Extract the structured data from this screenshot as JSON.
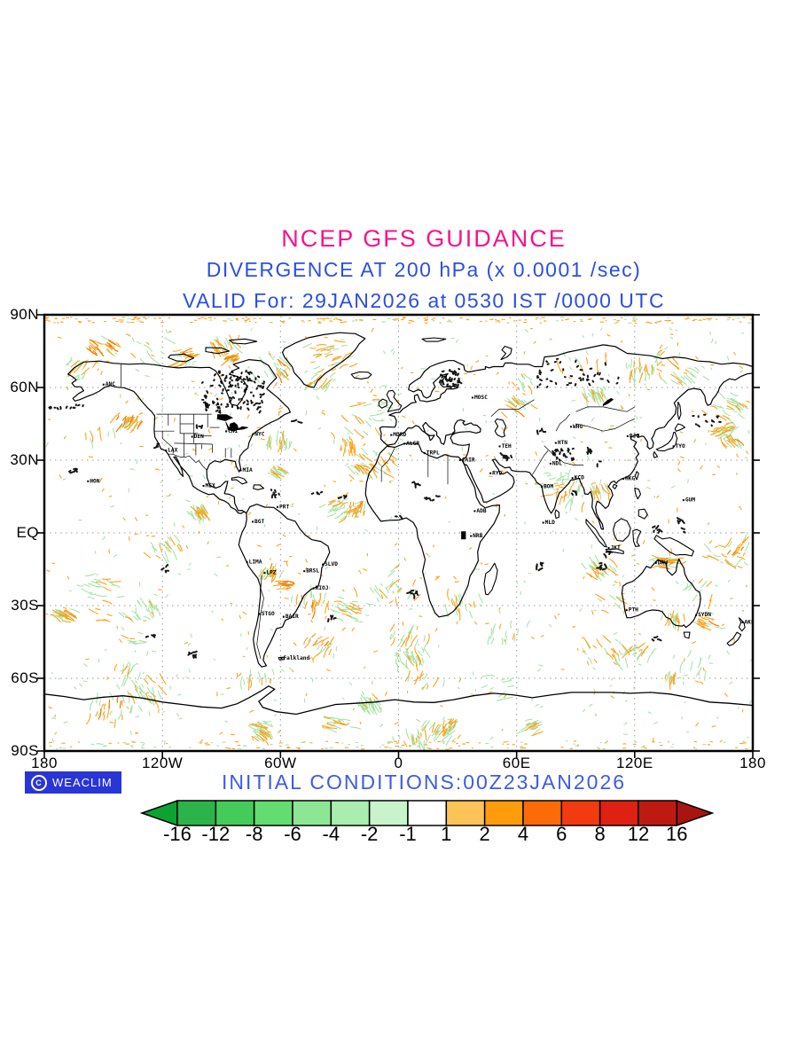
{
  "header": {
    "title": "NCEP GFS GUIDANCE",
    "title_color": "#F5148C",
    "subtitle": "DIVERGENCE AT 200 hPa (x 0.0001 /sec)",
    "valid_line": "VALID For: 29JAN2026 at 0530 IST /0000 UTC",
    "text_color": "#2B4FE0"
  },
  "map": {
    "y_axis_labels": [
      "90N",
      "60N",
      "30N",
      "EQ",
      "30S",
      "60S",
      "90S"
    ],
    "x_axis_labels": [
      "180",
      "120W",
      "60W",
      "0",
      "60E",
      "120E",
      "180"
    ],
    "gridline_color": "#999999",
    "coastline_color": "#000000",
    "frame_color": "#000000",
    "field_colors": {
      "divergence_orange": "#FFA21C",
      "strong_divergence_orange": "#F47B00",
      "convergence_green": "#A6E4A8",
      "extreme_black": "#151515"
    },
    "stations": [
      {
        "code": "ANC",
        "lon": -149.9,
        "lat": 61.2
      },
      {
        "code": "HON",
        "lon": -157.8,
        "lat": 21.3
      },
      {
        "code": "LAX",
        "lon": -118.2,
        "lat": 34.0
      },
      {
        "code": "DEN",
        "lon": -104.9,
        "lat": 39.7
      },
      {
        "code": "CHI",
        "lon": -87.6,
        "lat": 41.9
      },
      {
        "code": "NYC",
        "lon": -74.0,
        "lat": 40.7
      },
      {
        "code": "MIA",
        "lon": -80.2,
        "lat": 25.8
      },
      {
        "code": "MEX",
        "lon": -99.1,
        "lat": 19.4
      },
      {
        "code": "BGT",
        "lon": -74.1,
        "lat": 4.6
      },
      {
        "code": "PRT",
        "lon": -61.5,
        "lat": 10.7
      },
      {
        "code": "LIMA",
        "lon": -77.0,
        "lat": -12.0
      },
      {
        "code": "LPZ",
        "lon": -68.1,
        "lat": -16.5
      },
      {
        "code": "BRSL",
        "lon": -47.9,
        "lat": -15.8
      },
      {
        "code": "SLVD",
        "lon": -38.5,
        "lat": -13.0
      },
      {
        "code": "RIOJ",
        "lon": -43.2,
        "lat": -22.9
      },
      {
        "code": "STGO",
        "lon": -70.6,
        "lat": -33.5
      },
      {
        "code": "BAIR",
        "lon": -58.4,
        "lat": -34.6
      },
      {
        "code": "Falkland",
        "lon": -59.5,
        "lat": -51.7
      },
      {
        "code": "MDRD",
        "lon": -3.7,
        "lat": 40.4
      },
      {
        "code": "ALGR",
        "lon": 3.0,
        "lat": 36.8
      },
      {
        "code": "TRPL",
        "lon": 13.2,
        "lat": 32.9
      },
      {
        "code": "CAIR",
        "lon": 31.2,
        "lat": 30.0
      },
      {
        "code": "MOSC",
        "lon": 37.6,
        "lat": 55.8
      },
      {
        "code": "RYD",
        "lon": 46.7,
        "lat": 24.6
      },
      {
        "code": "TEH",
        "lon": 51.4,
        "lat": 35.7
      },
      {
        "code": "ADB",
        "lon": 38.7,
        "lat": 9.0
      },
      {
        "code": "NRB",
        "lon": 36.8,
        "lat": -1.3
      },
      {
        "code": "NDL",
        "lon": 77.2,
        "lat": 28.6
      },
      {
        "code": "BOM",
        "lon": 72.8,
        "lat": 19.0
      },
      {
        "code": "MLD",
        "lon": 73.5,
        "lat": 4.2
      },
      {
        "code": "KCD",
        "lon": 88.4,
        "lat": 22.6
      },
      {
        "code": "HTN",
        "lon": 79.9,
        "lat": 37.1
      },
      {
        "code": "WHG",
        "lon": 87.6,
        "lat": 43.8
      },
      {
        "code": "BJG",
        "lon": 116.4,
        "lat": 39.9
      },
      {
        "code": "TYO",
        "lon": 139.7,
        "lat": 35.7
      },
      {
        "code": "HKG",
        "lon": 114.2,
        "lat": 22.3
      },
      {
        "code": "GUM",
        "lon": 144.8,
        "lat": 13.5
      },
      {
        "code": "JKT",
        "lon": 106.8,
        "lat": -6.2
      },
      {
        "code": "DRW",
        "lon": 130.8,
        "lat": -12.4
      },
      {
        "code": "PTH",
        "lon": 115.9,
        "lat": -31.9
      },
      {
        "code": "SYDN",
        "lon": 151.2,
        "lat": -33.9
      },
      {
        "code": "AKLT",
        "lon": 174.8,
        "lat": -36.9
      }
    ]
  },
  "footer": {
    "logo_symbol": "C",
    "logo_text": "WEACLIM",
    "logo_bg": "#2A35D6",
    "initial_conditions": "INITIAL CONDITIONS:00Z23JAN2026",
    "initial_conditions_color": "#3C5BE8"
  },
  "colorbar": {
    "levels": [
      "-16",
      "-12",
      "-8",
      "-6",
      "-4",
      "-2",
      "-1",
      "1",
      "2",
      "4",
      "6",
      "8",
      "12",
      "16"
    ],
    "segment_colors": [
      "#2CB44A",
      "#44CB59",
      "#63DC72",
      "#8CE795",
      "#A9EDAF",
      "#C8F3CB",
      "#FFFFFF",
      "#FEC357",
      "#FE9D0B",
      "#FD6A08",
      "#F23B10",
      "#DE2113",
      "#BE1A12"
    ],
    "left_arrow_color": "#0CA331",
    "right_arrow_color": "#A91410",
    "outline_color": "#000000",
    "label_color": "#000000"
  }
}
